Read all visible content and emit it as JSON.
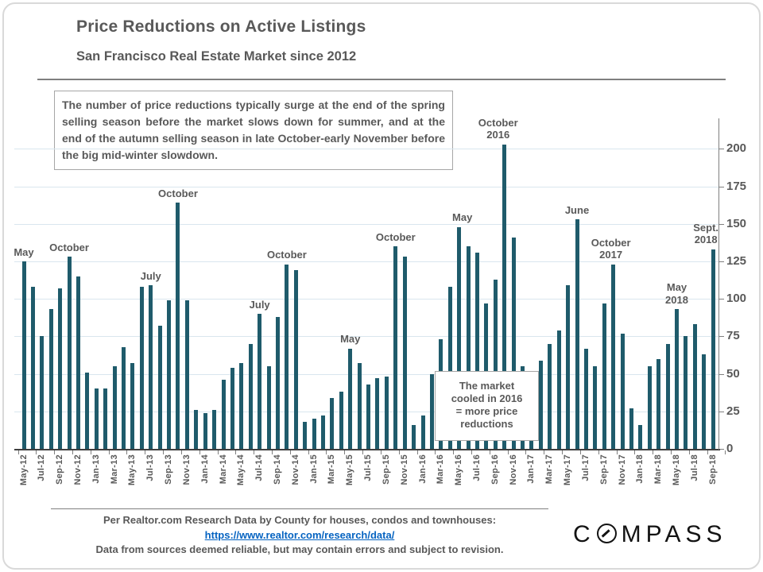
{
  "header": {
    "title": "Price Reductions on Active Listings",
    "subtitle": "San Francisco Real Estate Market since 2012"
  },
  "info_box": {
    "text": "The number of price reductions typically surge at the end of the spring selling season before the market slows down for summer, and at the end of the autumn selling season in late October-early November before the big mid-winter slowdown."
  },
  "chart_data": {
    "type": "bar",
    "title": "Price Reductions on Active Listings",
    "xlabel": "",
    "ylabel": "",
    "categories": [
      "May-12",
      "Jun-12",
      "Jul-12",
      "Aug-12",
      "Sep-12",
      "Oct-12",
      "Nov-12",
      "Dec-12",
      "Jan-13",
      "Feb-13",
      "Mar-13",
      "Apr-13",
      "May-13",
      "Jun-13",
      "Jul-13",
      "Aug-13",
      "Sep-13",
      "Oct-13",
      "Nov-13",
      "Dec-13",
      "Jan-14",
      "Feb-14",
      "Mar-14",
      "Apr-14",
      "May-14",
      "Jun-14",
      "Jul-14",
      "Aug-14",
      "Sep-14",
      "Oct-14",
      "Nov-14",
      "Dec-14",
      "Jan-15",
      "Feb-15",
      "Mar-15",
      "Apr-15",
      "May-15",
      "Jun-15",
      "Jul-15",
      "Aug-15",
      "Sep-15",
      "Oct-15",
      "Nov-15",
      "Dec-15",
      "Jan-16",
      "Feb-16",
      "Mar-16",
      "Apr-16",
      "May-16",
      "Jun-16",
      "Jul-16",
      "Aug-16",
      "Sep-16",
      "Oct-16",
      "Nov-16",
      "Dec-16",
      "Jan-17",
      "Feb-17",
      "Mar-17",
      "Apr-17",
      "May-17",
      "Jun-17",
      "Jul-17",
      "Aug-17",
      "Sep-17",
      "Oct-17",
      "Nov-17",
      "Dec-17",
      "Jan-18",
      "Feb-18",
      "Mar-18",
      "Apr-18",
      "May-18",
      "Jun-18",
      "Jul-18",
      "Aug-18",
      "Sep-18"
    ],
    "values": [
      125,
      108,
      75,
      93,
      107,
      128,
      115,
      51,
      40,
      40,
      55,
      68,
      57,
      108,
      109,
      82,
      99,
      164,
      99,
      26,
      24,
      26,
      46,
      54,
      57,
      70,
      90,
      55,
      88,
      123,
      119,
      18,
      20,
      22,
      34,
      38,
      67,
      57,
      43,
      47,
      48,
      135,
      128,
      16,
      22,
      50,
      73,
      108,
      148,
      135,
      131,
      97,
      113,
      203,
      141,
      55,
      20,
      59,
      70,
      79,
      109,
      153,
      67,
      55,
      97,
      123,
      77,
      27,
      16,
      55,
      60,
      70,
      93,
      75,
      83,
      63,
      133
    ],
    "x_tick_labels": [
      "May-12",
      "Jul-12",
      "Sep-12",
      "Nov-12",
      "Jan-13",
      "Mar-13",
      "May-13",
      "Jul-13",
      "Sep-13",
      "Nov-13",
      "Jan-14",
      "Mar-14",
      "May-14",
      "Jul-14",
      "Sep-14",
      "Nov-14",
      "Jan-15",
      "Mar-15",
      "May-15",
      "Jul-15",
      "Sep-15",
      "Nov-15",
      "Jan-16",
      "Mar-16",
      "May-16",
      "Jul-16",
      "Sep-16",
      "Nov-16",
      "Jan-17",
      "Mar-17",
      "May-17",
      "Jul-17",
      "Sep-17",
      "Nov-17",
      "Jan-18",
      "Mar-18",
      "May-18",
      "Jul-18",
      "Sep-18"
    ],
    "y_ticks": [
      0,
      25,
      50,
      75,
      100,
      125,
      150,
      175,
      200
    ],
    "ylim": [
      0,
      220
    ],
    "grid": true,
    "legend": "none",
    "annotations": [
      {
        "lines": [
          "May"
        ],
        "anchor": 0
      },
      {
        "lines": [
          "October"
        ],
        "anchor": 5
      },
      {
        "lines": [
          "July"
        ],
        "anchor": 14
      },
      {
        "lines": [
          "October"
        ],
        "anchor": 17
      },
      {
        "lines": [
          "July"
        ],
        "anchor": 26
      },
      {
        "lines": [
          "October"
        ],
        "anchor": 29
      },
      {
        "lines": [
          "May"
        ],
        "anchor": 36
      },
      {
        "lines": [
          "October"
        ],
        "anchor": 41
      },
      {
        "lines": [
          "May"
        ],
        "anchor": 48,
        "dx": 4
      },
      {
        "lines": [
          "October",
          "2016"
        ],
        "anchor": 53,
        "dx": -8
      },
      {
        "lines": [
          "June"
        ],
        "anchor": 61
      },
      {
        "lines": [
          "October",
          "2017"
        ],
        "anchor": 65,
        "dx": -3
      },
      {
        "lines": [
          "May",
          "2018"
        ],
        "anchor": 72
      },
      {
        "lines": [
          "Sept.",
          "2018"
        ],
        "anchor": 76,
        "dx": -9
      }
    ],
    "callout": {
      "lines": [
        "The market",
        "cooled in 2016",
        "= more price",
        "reductions"
      ]
    }
  },
  "footer": {
    "source_line": "Per Realtor.com Research Data by County for houses, condos and townhouses:",
    "link": "https://www.realtor.com/research/data/",
    "disclaimer": "Data from sources deemed reliable, but may contain errors and subject to revision."
  },
  "logo": {
    "text": "COMPASS"
  },
  "colors": {
    "bar": "#1f5b6b",
    "gridline": "#d9e6ee",
    "axis_dark": "#3f3f3f",
    "axis_gray": "#7f7f7f",
    "text_gray": "#595959",
    "link_blue": "#0563c1",
    "logo_black": "#131313"
  }
}
